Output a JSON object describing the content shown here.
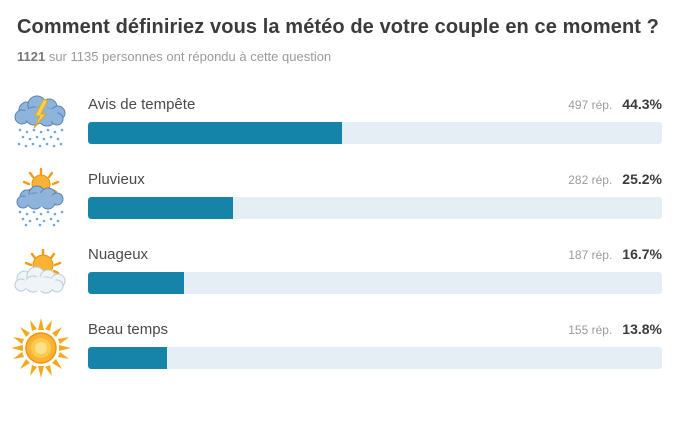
{
  "header": {
    "title": "Comment définiriez vous la météo de votre couple en ce moment ?",
    "responded_count": "1121",
    "responded_rest": " sur 1135 personnes ont répondu à cette question"
  },
  "rows": [
    {
      "icon": "storm-icon",
      "label": "Avis de tempête",
      "count_label": "497 rép.",
      "percent_label": "44.3%",
      "percent": 44.3
    },
    {
      "icon": "sun-rain-icon",
      "label": "Pluvieux",
      "count_label": "282 rép.",
      "percent_label": "25.2%",
      "percent": 25.2
    },
    {
      "icon": "sun-cloud-icon",
      "label": "Nuageux",
      "count_label": "187 rép.",
      "percent_label": "16.7%",
      "percent": 16.7
    },
    {
      "icon": "sun-icon",
      "label": "Beau temps",
      "count_label": "155 rép.",
      "percent_label": "13.8%",
      "percent": 13.8
    }
  ],
  "colors": {
    "bar_fill": "#1584a8",
    "bar_track": "#e4eef4",
    "title_text": "#3b3b3b",
    "muted_text": "#9b9b9b"
  },
  "chart_data": {
    "type": "bar",
    "orientation": "horizontal",
    "title": "Comment définiriez vous la météo de votre couple en ce moment ?",
    "subtitle": "1121 sur 1135 personnes ont répondu à cette question",
    "categories": [
      "Avis de tempête",
      "Pluvieux",
      "Nuageux",
      "Beau temps"
    ],
    "series": [
      {
        "name": "Réponses (nombre)",
        "values": [
          497,
          282,
          187,
          155
        ]
      },
      {
        "name": "Réponses (%)",
        "values": [
          44.3,
          25.2,
          16.7,
          13.8
        ]
      }
    ],
    "respondents": 1121,
    "total_people": 1135,
    "xlabel": "",
    "ylabel": "",
    "xlim": [
      0,
      100
    ],
    "grid": false,
    "legend_position": "none"
  }
}
